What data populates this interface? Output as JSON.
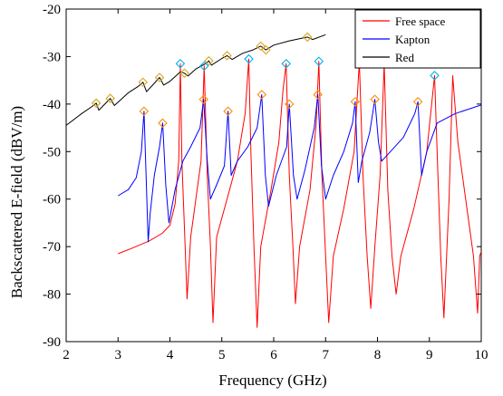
{
  "chart_data": {
    "type": "line",
    "title": "",
    "xlabel": "Frequency (GHz)",
    "ylabel": "Backscattered E-field (dBV/m)",
    "xlim": [
      2,
      10
    ],
    "ylim": [
      -90,
      -20
    ],
    "xticks": [
      2,
      3,
      4,
      5,
      6,
      7,
      8,
      9,
      10
    ],
    "yticks": [
      -90,
      -80,
      -70,
      -60,
      -50,
      -40,
      -30,
      -20
    ],
    "grid": false,
    "legend_position": "top-right",
    "series": [
      {
        "name": "Free space",
        "color": "#ff0000",
        "points": [
          [
            3.0,
            -71.5
          ],
          [
            3.3,
            -70.2
          ],
          [
            3.6,
            -68.8
          ],
          [
            3.85,
            -67.2
          ],
          [
            4.0,
            -65.5
          ],
          [
            4.1,
            -61
          ],
          [
            4.17,
            -52
          ],
          [
            4.2,
            -31.5
          ],
          [
            4.23,
            -52
          ],
          [
            4.28,
            -66
          ],
          [
            4.33,
            -81
          ],
          [
            4.4,
            -68
          ],
          [
            4.5,
            -60
          ],
          [
            4.6,
            -52
          ],
          [
            4.66,
            -32
          ],
          [
            4.72,
            -55
          ],
          [
            4.78,
            -70
          ],
          [
            4.83,
            -86
          ],
          [
            4.9,
            -68
          ],
          [
            5.1,
            -60
          ],
          [
            5.3,
            -52
          ],
          [
            5.45,
            -42
          ],
          [
            5.52,
            -30.5
          ],
          [
            5.56,
            -50
          ],
          [
            5.62,
            -70
          ],
          [
            5.68,
            -87
          ],
          [
            5.75,
            -70
          ],
          [
            5.95,
            -58
          ],
          [
            6.1,
            -48
          ],
          [
            6.18,
            -37
          ],
          [
            6.24,
            -31.5
          ],
          [
            6.3,
            -55
          ],
          [
            6.37,
            -70
          ],
          [
            6.42,
            -82
          ],
          [
            6.5,
            -70
          ],
          [
            6.7,
            -58
          ],
          [
            6.82,
            -44
          ],
          [
            6.87,
            -31
          ],
          [
            6.93,
            -55
          ],
          [
            7.0,
            -72
          ],
          [
            7.06,
            -86
          ],
          [
            7.15,
            -72
          ],
          [
            7.35,
            -62
          ],
          [
            7.55,
            -50
          ],
          [
            7.65,
            -31
          ],
          [
            7.72,
            -55
          ],
          [
            7.8,
            -72
          ],
          [
            7.87,
            -83
          ],
          [
            7.95,
            -70
          ],
          [
            8.05,
            -55
          ],
          [
            8.13,
            -31.5
          ],
          [
            8.2,
            -58
          ],
          [
            8.28,
            -72
          ],
          [
            8.36,
            -80
          ],
          [
            8.45,
            -72
          ],
          [
            8.7,
            -62
          ],
          [
            8.95,
            -50
          ],
          [
            9.1,
            -34
          ],
          [
            9.15,
            -50
          ],
          [
            9.22,
            -72
          ],
          [
            9.28,
            -85
          ],
          [
            9.38,
            -60
          ],
          [
            9.45,
            -34
          ],
          [
            9.55,
            -48
          ],
          [
            9.7,
            -60
          ],
          [
            9.85,
            -72
          ],
          [
            9.93,
            -84
          ],
          [
            9.97,
            -72
          ],
          [
            10.0,
            -71
          ]
        ]
      },
      {
        "name": "Kapton",
        "color": "#0000ff",
        "points": [
          [
            3.0,
            -59.3
          ],
          [
            3.2,
            -58.0
          ],
          [
            3.35,
            -55.5
          ],
          [
            3.45,
            -50
          ],
          [
            3.5,
            -41.5
          ],
          [
            3.54,
            -55
          ],
          [
            3.58,
            -69
          ],
          [
            3.62,
            -63
          ],
          [
            3.7,
            -55
          ],
          [
            3.8,
            -49
          ],
          [
            3.86,
            -44
          ],
          [
            3.92,
            -57
          ],
          [
            3.98,
            -65
          ],
          [
            4.1,
            -58
          ],
          [
            4.25,
            -52
          ],
          [
            4.4,
            -49
          ],
          [
            4.58,
            -45
          ],
          [
            4.65,
            -39
          ],
          [
            4.72,
            -52
          ],
          [
            4.78,
            -60
          ],
          [
            4.9,
            -57
          ],
          [
            5.05,
            -53
          ],
          [
            5.12,
            -41.5
          ],
          [
            5.18,
            -55
          ],
          [
            5.3,
            -52
          ],
          [
            5.5,
            -49
          ],
          [
            5.68,
            -45
          ],
          [
            5.77,
            -38
          ],
          [
            5.84,
            -55
          ],
          [
            5.9,
            -61.5
          ],
          [
            6.05,
            -55
          ],
          [
            6.25,
            -49
          ],
          [
            6.3,
            -40
          ],
          [
            6.38,
            -55
          ],
          [
            6.45,
            -60
          ],
          [
            6.6,
            -54
          ],
          [
            6.78,
            -45
          ],
          [
            6.85,
            -38
          ],
          [
            6.92,
            -53
          ],
          [
            7.0,
            -60
          ],
          [
            7.15,
            -55
          ],
          [
            7.35,
            -50
          ],
          [
            7.52,
            -44
          ],
          [
            7.57,
            -39.5
          ],
          [
            7.63,
            -56.5
          ],
          [
            7.7,
            -52
          ],
          [
            7.85,
            -46
          ],
          [
            7.95,
            -39
          ],
          [
            8.02,
            -48
          ],
          [
            8.08,
            -52
          ],
          [
            8.25,
            -50
          ],
          [
            8.5,
            -47
          ],
          [
            8.72,
            -42
          ],
          [
            8.78,
            -39.5
          ],
          [
            8.85,
            -55
          ],
          [
            8.95,
            -50
          ],
          [
            9.15,
            -44
          ],
          [
            9.5,
            -42
          ],
          [
            10.0,
            -40.2
          ]
        ]
      },
      {
        "name": "Red",
        "color": "#000000",
        "points": [
          [
            2.0,
            -44.5
          ],
          [
            2.3,
            -42
          ],
          [
            2.5,
            -40.5
          ],
          [
            2.58,
            -39.8
          ],
          [
            2.63,
            -41.3
          ],
          [
            2.7,
            -40.5
          ],
          [
            2.85,
            -38.8
          ],
          [
            2.93,
            -40.3
          ],
          [
            3.0,
            -39.6
          ],
          [
            3.2,
            -37.6
          ],
          [
            3.4,
            -36.2
          ],
          [
            3.48,
            -35.4
          ],
          [
            3.55,
            -37.4
          ],
          [
            3.65,
            -36.2
          ],
          [
            3.8,
            -34.4
          ],
          [
            3.88,
            -36.0
          ],
          [
            4.0,
            -35.2
          ],
          [
            4.2,
            -33.2
          ],
          [
            4.28,
            -33.5
          ],
          [
            4.35,
            -34.1
          ],
          [
            4.5,
            -32.6
          ],
          [
            4.7,
            -31.4
          ],
          [
            4.75,
            -30.9
          ],
          [
            4.8,
            -31.8
          ],
          [
            5.0,
            -30.4
          ],
          [
            5.1,
            -29.8
          ],
          [
            5.2,
            -30.6
          ],
          [
            5.4,
            -29.3
          ],
          [
            5.6,
            -28.6
          ],
          [
            5.75,
            -27.8
          ],
          [
            5.85,
            -28.6
          ],
          [
            6.0,
            -27.6
          ],
          [
            6.3,
            -26.7
          ],
          [
            6.6,
            -26.0
          ],
          [
            6.65,
            -25.9
          ],
          [
            6.75,
            -26.4
          ],
          [
            7.0,
            -25.4
          ]
        ]
      }
    ],
    "markers": [
      {
        "series": "Free space",
        "color": "#00b0f0",
        "x": [
          4.2,
          4.66,
          5.52,
          6.24,
          6.87,
          7.65,
          8.13,
          9.1
        ]
      },
      {
        "series": "Kapton",
        "color": "#ff8c00",
        "x": [
          3.5,
          3.86,
          4.65,
          5.12,
          5.77,
          6.3,
          6.85,
          7.57,
          7.95,
          8.78
        ]
      },
      {
        "series": "Red",
        "color": "#daa520",
        "x": [
          2.58,
          2.85,
          3.48,
          3.8,
          4.28,
          4.75,
          5.1,
          5.75,
          5.85,
          6.65
        ]
      }
    ]
  }
}
